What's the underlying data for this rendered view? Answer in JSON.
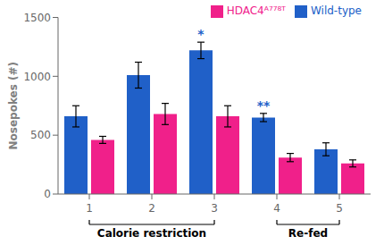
{
  "chart_data": {
    "type": "bar",
    "categories": [
      1,
      2,
      3,
      4,
      5
    ],
    "series": [
      {
        "name": "Wild-type",
        "color": "#2060C8",
        "values": [
          660,
          1010,
          1220,
          650,
          380
        ],
        "errors": [
          90,
          110,
          70,
          35,
          55
        ]
      },
      {
        "name": "HDAC4ᴬ⁷⁷⁸ᵀ",
        "color": "#F0208A",
        "values": [
          460,
          680,
          660,
          310,
          260
        ],
        "errors": [
          30,
          90,
          90,
          35,
          30
        ]
      }
    ],
    "ylabel": "Nosepokes (#)",
    "ylim": [
      0,
      1500
    ],
    "yticks": [
      0,
      500,
      1000,
      1500
    ],
    "legend": "upper right",
    "grid": false,
    "annotations": [
      {
        "text": "*",
        "category": 3,
        "series": "Wild-type"
      },
      {
        "text": "**",
        "category": 4,
        "series": "Wild-type"
      }
    ],
    "groups": [
      {
        "label": "Calorie restriction",
        "from": 1,
        "to": 3
      },
      {
        "label": "Re-fed",
        "from": 4,
        "to": 5
      }
    ]
  }
}
